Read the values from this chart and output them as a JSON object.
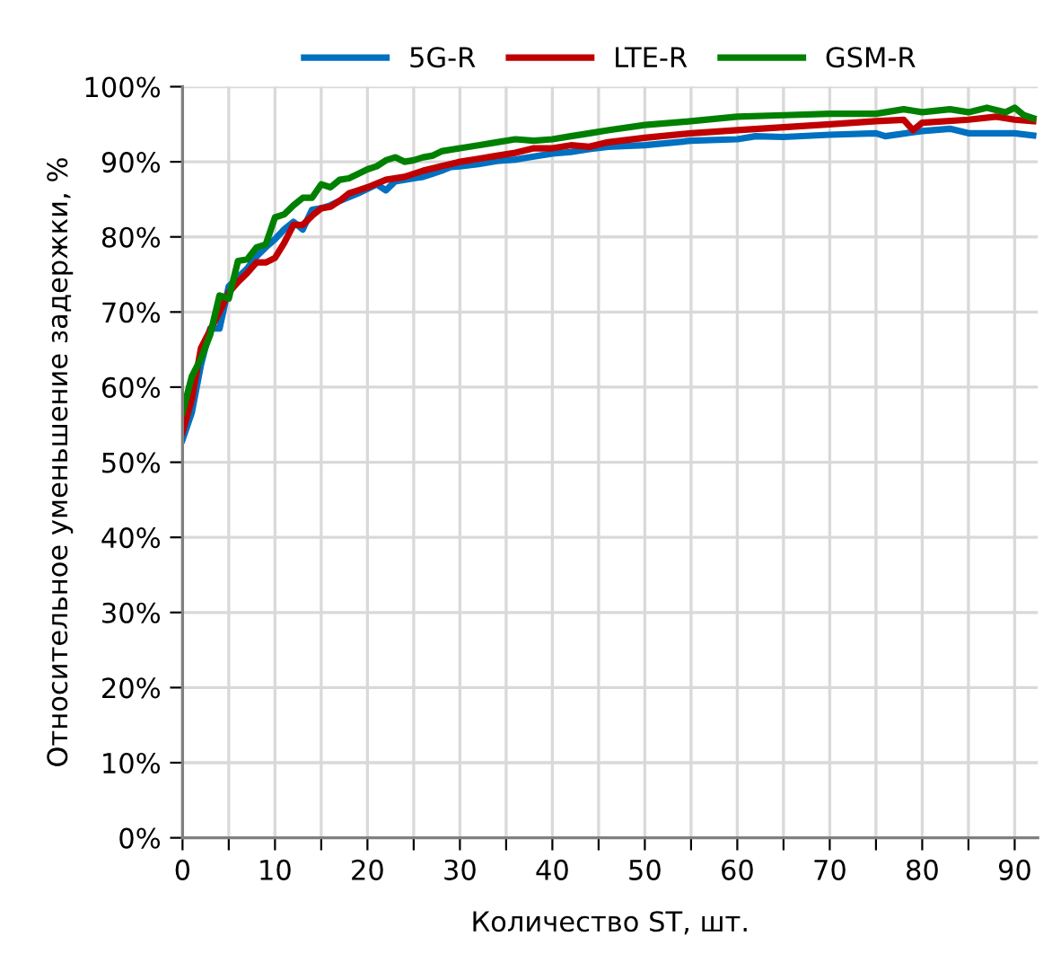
{
  "chart_data": {
    "type": "line",
    "xlabel": "Количество ST, шт.",
    "ylabel": "Относительное уменьшение задержки, %",
    "xlim": [
      0,
      92.5
    ],
    "xticks": [
      0,
      {
        "value": 5,
        "label": null
      },
      10,
      {
        "value": 15,
        "label": null
      },
      20,
      {
        "value": 25,
        "label": null
      },
      30,
      {
        "value": 35,
        "label": null
      },
      40,
      {
        "value": 45,
        "label": null
      },
      50,
      {
        "value": 55,
        "label": null
      },
      60,
      {
        "value": 65,
        "label": null
      },
      70,
      {
        "value": 75,
        "label": null
      },
      80,
      {
        "value": 85,
        "label": null
      },
      90
    ],
    "ylim": [
      0,
      100
    ],
    "yticks": [
      {
        "value": 0,
        "label": "0%"
      },
      {
        "value": 10,
        "label": "10%"
      },
      {
        "value": 20,
        "label": "20%"
      },
      {
        "value": 30,
        "label": "30%"
      },
      {
        "value": 40,
        "label": "40%"
      },
      {
        "value": 50,
        "label": "50%"
      },
      {
        "value": 60,
        "label": "60%"
      },
      {
        "value": 70,
        "label": "70%"
      },
      {
        "value": 80,
        "label": "80%"
      },
      {
        "value": 90,
        "label": "90%"
      },
      {
        "value": 100,
        "label": "100%"
      }
    ],
    "grid": true,
    "legend": "top",
    "marker": "none",
    "line_style": "solid",
    "series": [
      {
        "name": "5G-R",
        "color": "#0070c0",
        "x": [
          0,
          1,
          2,
          3,
          4,
          5,
          6,
          7,
          8,
          9,
          10,
          11,
          12,
          13,
          14,
          15,
          16,
          17,
          18,
          19,
          20,
          21,
          22,
          23,
          24,
          25,
          26,
          27,
          28,
          29,
          30,
          32,
          34,
          36,
          38,
          40,
          42,
          44,
          46,
          50,
          55,
          60,
          62,
          65,
          70,
          75,
          76,
          80,
          83,
          85,
          90,
          92
        ],
        "values": [
          53,
          56.6,
          63,
          67.8,
          67.8,
          73.4,
          74.6,
          75.8,
          77.4,
          78.6,
          79.7,
          81,
          82,
          81,
          83.6,
          83.8,
          84.2,
          84.8,
          85.3,
          85.8,
          86.4,
          87,
          86.2,
          87.4,
          87.6,
          87.8,
          88,
          88.4,
          88.8,
          89.3,
          89.4,
          89.7,
          90.1,
          90.3,
          90.7,
          91.1,
          91.3,
          91.7,
          92,
          92.2,
          92.8,
          93,
          93.4,
          93.3,
          93.6,
          93.8,
          93.4,
          94.1,
          94.4,
          93.8,
          93.8,
          93.5
        ]
      },
      {
        "name": "LTE-R",
        "color": "#c00000",
        "x": [
          0,
          1,
          2,
          3,
          4,
          5,
          6,
          7,
          8,
          9,
          10,
          11,
          12,
          13,
          14,
          15,
          16,
          17,
          18,
          19,
          20,
          22,
          24,
          26,
          28,
          30,
          32,
          34,
          36,
          38,
          40,
          42,
          44,
          46,
          50,
          55,
          60,
          65,
          70,
          75,
          78,
          79,
          80,
          85,
          88,
          90,
          92
        ],
        "values": [
          54,
          58.4,
          65.2,
          67.6,
          70,
          72.6,
          74,
          75.2,
          76.6,
          76.6,
          77.2,
          79.2,
          81.6,
          81.6,
          82.8,
          83.8,
          84,
          84.8,
          85.8,
          86.2,
          86.6,
          87.6,
          88,
          88.8,
          89.4,
          90,
          90.4,
          90.8,
          91.2,
          91.8,
          91.8,
          92.2,
          92,
          92.6,
          93.2,
          93.8,
          94.2,
          94.6,
          95,
          95.4,
          95.6,
          94.2,
          95.2,
          95.6,
          96,
          95.6,
          95.4
        ]
      },
      {
        "name": "GSM-R",
        "color": "#008000",
        "x": [
          0,
          1,
          2,
          3,
          4,
          5,
          6,
          7,
          8,
          9,
          10,
          11,
          12,
          13,
          14,
          15,
          16,
          17,
          18,
          19,
          20,
          21,
          22,
          23,
          24,
          25,
          26,
          27,
          28,
          30,
          32,
          34,
          36,
          38,
          40,
          42,
          44,
          46,
          50,
          55,
          60,
          65,
          70,
          75,
          78,
          80,
          83,
          85,
          87,
          89,
          90,
          91,
          92
        ],
        "values": [
          56.6,
          61.4,
          63.8,
          67,
          72.2,
          71.8,
          76.8,
          77,
          78.6,
          79,
          82.6,
          83,
          84.2,
          85.2,
          85.2,
          87,
          86.6,
          87.6,
          87.8,
          88.4,
          89,
          89.4,
          90.2,
          90.6,
          90,
          90.2,
          90.6,
          90.8,
          91.4,
          91.8,
          92.2,
          92.6,
          93,
          92.8,
          93,
          93.4,
          93.8,
          94.2,
          94.9,
          95.4,
          96,
          96.2,
          96.4,
          96.4,
          97,
          96.6,
          97,
          96.6,
          97.2,
          96.6,
          97.2,
          96.2,
          95.8
        ]
      }
    ]
  }
}
